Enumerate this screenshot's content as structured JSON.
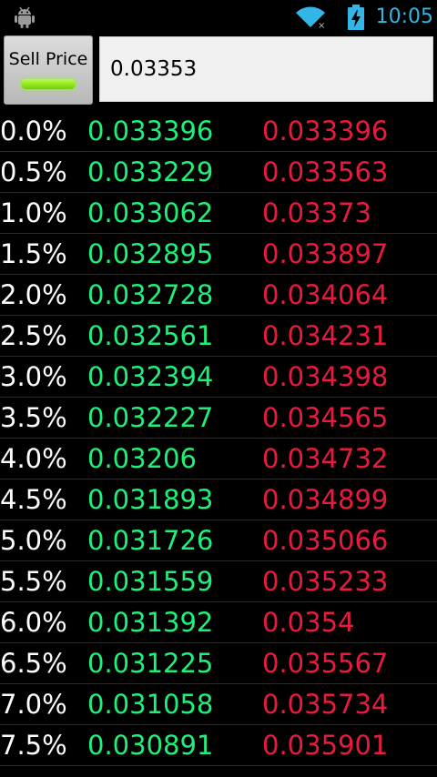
{
  "status_bar": {
    "time": "10:05",
    "icons": [
      "android-debug-icon",
      "wifi-icon",
      "battery-charging-icon"
    ],
    "clock_color": "#33b5e5"
  },
  "controls": {
    "sell_button_label": "Sell Price",
    "price_value": "0.03353"
  },
  "colors": {
    "low_price": "#1ef07a",
    "high_price": "#e81a3e",
    "percent": "#ffffff",
    "background": "#000000"
  },
  "rows": [
    {
      "pct": "0.0%",
      "low": "0.033396",
      "high": "0.033396"
    },
    {
      "pct": "0.5%",
      "low": "0.033229",
      "high": "0.033563"
    },
    {
      "pct": "1.0%",
      "low": "0.033062",
      "high": "0.03373"
    },
    {
      "pct": "1.5%",
      "low": "0.032895",
      "high": "0.033897"
    },
    {
      "pct": "2.0%",
      "low": "0.032728",
      "high": "0.034064"
    },
    {
      "pct": "2.5%",
      "low": "0.032561",
      "high": "0.034231"
    },
    {
      "pct": "3.0%",
      "low": "0.032394",
      "high": "0.034398"
    },
    {
      "pct": "3.5%",
      "low": "0.032227",
      "high": "0.034565"
    },
    {
      "pct": "4.0%",
      "low": "0.03206",
      "high": "0.034732"
    },
    {
      "pct": "4.5%",
      "low": "0.031893",
      "high": "0.034899"
    },
    {
      "pct": "5.0%",
      "low": "0.031726",
      "high": "0.035066"
    },
    {
      "pct": "5.5%",
      "low": "0.031559",
      "high": "0.035233"
    },
    {
      "pct": "6.0%",
      "low": "0.031392",
      "high": "0.0354"
    },
    {
      "pct": "6.5%",
      "low": "0.031225",
      "high": "0.035567"
    },
    {
      "pct": "7.0%",
      "low": "0.031058",
      "high": "0.035734"
    },
    {
      "pct": "7.5%",
      "low": "0.030891",
      "high": "0.035901"
    }
  ]
}
